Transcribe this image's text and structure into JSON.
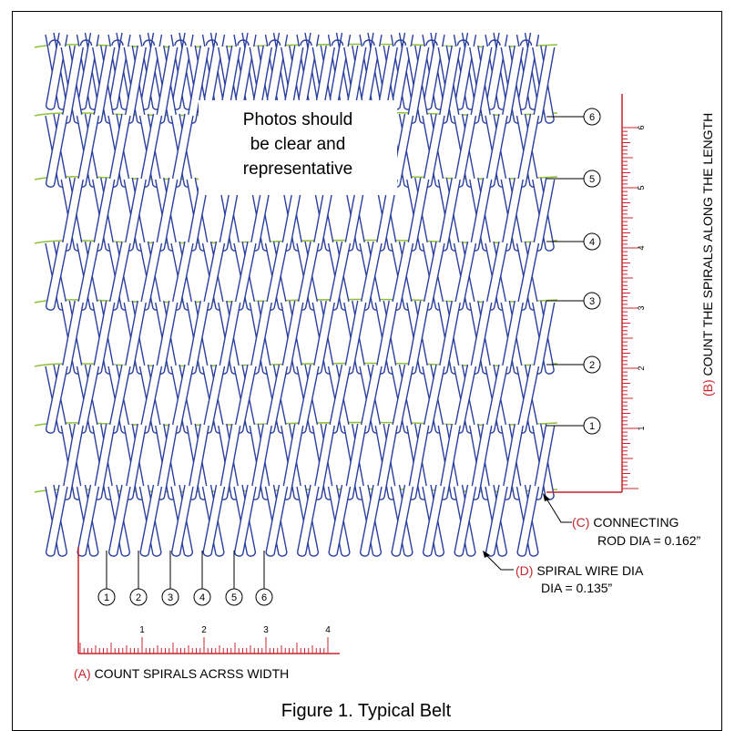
{
  "note": {
    "line1": "Photos should",
    "line2": "be clear and",
    "line3": "representative"
  },
  "length_markers": [
    "6",
    "5",
    "4",
    "3",
    "2",
    "1"
  ],
  "width_markers": [
    "1",
    "2",
    "3",
    "4",
    "5",
    "6"
  ],
  "length_scale": {
    "tick_labels": [
      "1",
      "2",
      "3",
      "4",
      "5",
      "6"
    ],
    "label_prefix": "(B)",
    "label_text": "COUNT THE SPIRALS ALONG THE LENGTH"
  },
  "width_scale": {
    "tick_labels": [
      "1",
      "2",
      "3",
      "4"
    ],
    "label_prefix": "(A)",
    "label_text": "COUNT SPIRALS ACRSS WIDTH"
  },
  "rod_callout": {
    "prefix": "(C)",
    "line1": "CONNECTING",
    "line2": "ROD DIA = 0.162”"
  },
  "wire_callout": {
    "prefix": "(D)",
    "line1": "SPIRAL WIRE DIA",
    "line2": "DIA = 0.135”"
  },
  "caption": "Figure 1. Typical Belt",
  "colors": {
    "spiral": "#2b3f9e",
    "rod": "#8fbf3a",
    "scale": "#c8252b",
    "ink": "#000000"
  }
}
